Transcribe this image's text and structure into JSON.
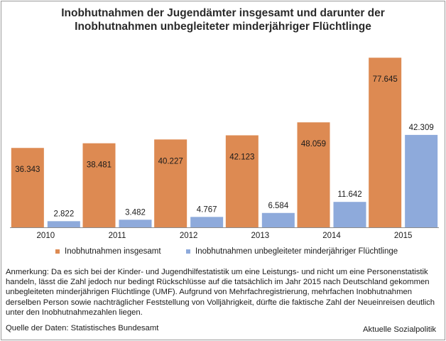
{
  "colors": {
    "insgesamt": "#dd8a52",
    "umf": "#8eaadb",
    "axis": "#8c8c8c"
  },
  "chart_data": {
    "type": "bar",
    "title": "Inobhutnahmen der Jugendämter insgesamt und darunter der Inobhutnahmen unbegleiteter minderjähriger Flüchtlinge",
    "title_lines": [
      "Inobhutnahmen der Jugendämter insgesamt und darunter der",
      "Inobhutnahmen unbegleiteter minderjähriger Flüchtlinge"
    ],
    "categories": [
      "2010",
      "2011",
      "2012",
      "2013",
      "2014",
      "2015"
    ],
    "series": [
      {
        "name": "Inobhutnahmen insgesamt",
        "values": [
          36343,
          38481,
          40227,
          42123,
          48059,
          77645
        ],
        "labels": [
          "36.343",
          "38.481",
          "40.227",
          "42.123",
          "48.059",
          "77.645"
        ]
      },
      {
        "name": "Inobhutnahmen unbegleiteter minderjähriger Flüchtlinge",
        "values": [
          2822,
          3482,
          4767,
          6584,
          11642,
          42309
        ],
        "labels": [
          "2.822",
          "3.482",
          "4.767",
          "6.584",
          "11.642",
          "42.309"
        ]
      }
    ],
    "xlabel": "",
    "ylabel": "",
    "ylim": [
      0,
      80000
    ],
    "grid": false,
    "legend": "bottom"
  },
  "note": "Anmerkung: Da es sich bei der Kinder- und Jugendhilfestatistik um eine Leistungs- und nicht um eine Personenstatistik handeln, lässt die Zahl jedoch nur bedingt Rückschlüsse auf die tatsächlich im Jahr 2015 nach Deutschland gekommen unbegleiteten minderjährigen Flüchtlinge (UMF). Aufgrund von Mehrfachregistrierung, mehrfachen Inobhutnahmen derselben Person sowie nachträglicher Feststellung von Volljährigkeit, dürfte die faktische Zahl der Neueinreisen deutlich unter den Inobhutnahmezahlen liegen.",
  "source": "Quelle der Daten: Statistisches Bundesamt",
  "brand": "Aktuelle Sozialpolitik"
}
